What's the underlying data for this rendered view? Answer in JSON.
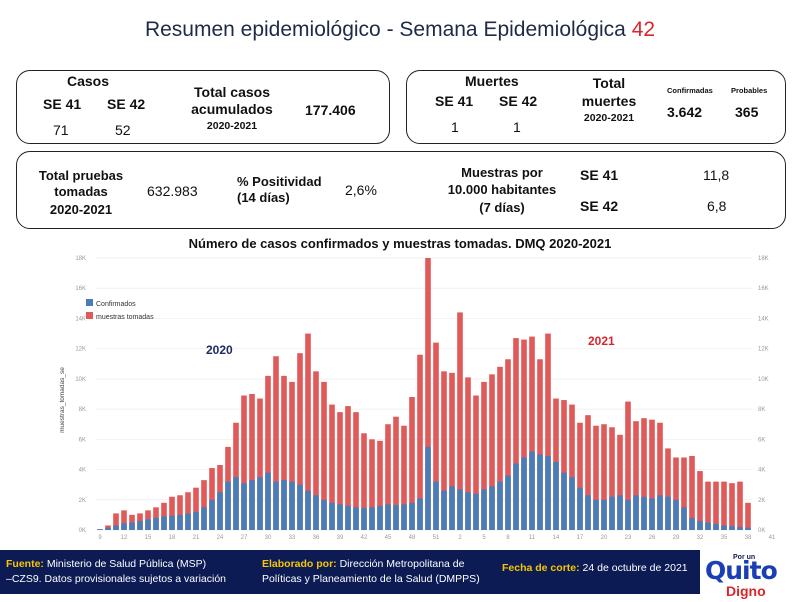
{
  "header": {
    "title": "Resumen epidemiológico - Semana Epidemiológica ",
    "week": "42"
  },
  "casos": {
    "heading": "Casos",
    "se41_label": "SE 41",
    "se42_label": "SE 42",
    "se41_value": "71",
    "se42_value": "52",
    "total_label_1": "Total casos",
    "total_label_2": "acumulados",
    "total_period": "2020-2021",
    "total_value": "177.406"
  },
  "muertes": {
    "heading": "Muertes",
    "se41_label": "SE 41",
    "se42_label": "SE 42",
    "se41_value": "1",
    "se42_value": "1",
    "total_label_1": "Total",
    "total_label_2": "muertes",
    "total_period": "2020-2021",
    "confirmadas_label": "Confirmadas",
    "probables_label": "Probables",
    "confirmadas_value": "3.642",
    "probables_value": "365"
  },
  "pruebas": {
    "total_label_1": "Total pruebas",
    "total_label_2": "tomadas",
    "total_period": "2020-2021",
    "total_value": "632.983",
    "positividad_label_1": "% Positividad",
    "positividad_label_2": "(14 días)",
    "positividad_value": "2,6%",
    "muestras_label_1": "Muestras por",
    "muestras_label_2": "10.000 habitantes",
    "muestras_label_3": "(7 días)",
    "se41_label": "SE 41",
    "se42_label": "SE 42",
    "se41_value": "11,8",
    "se42_value": "6,8"
  },
  "chart_data": {
    "type": "bar",
    "title": "Número de casos confirmados y muestras tomadas. DMQ 2020-2021",
    "ylabel": "muestras_tomadas_se",
    "ylim": [
      0,
      18000
    ],
    "yticks": [
      "0K",
      "2K",
      "4K",
      "6K",
      "8K",
      "10K",
      "12K",
      "14K",
      "16K",
      "18K"
    ],
    "xticks": [
      "9",
      "12",
      "15",
      "18",
      "21",
      "24",
      "27",
      "30",
      "33",
      "36",
      "39",
      "42",
      "45",
      "48",
      "51",
      "2",
      "5",
      "8",
      "11",
      "14",
      "17",
      "20",
      "23",
      "26",
      "29",
      "32",
      "35",
      "38",
      "41"
    ],
    "year_labels": [
      "2020",
      "2021"
    ],
    "colors": {
      "confirmados": "#4a7db8",
      "muestras": "#e05a5a"
    },
    "series": [
      {
        "name": "Confirmados",
        "values": [
          50,
          150,
          300,
          450,
          500,
          600,
          700,
          800,
          900,
          950,
          1000,
          1100,
          1200,
          1500,
          2000,
          2500,
          3200,
          3500,
          3100,
          3300,
          3500,
          3800,
          3200,
          3300,
          3200,
          3000,
          2600,
          2300,
          2000,
          1800,
          1700,
          1600,
          1500,
          1450,
          1500,
          1600,
          1700,
          1650,
          1700,
          1800,
          2100,
          5500,
          3200,
          2600,
          2900,
          2700,
          2500,
          2400,
          2700,
          2900,
          3200,
          3600,
          4400,
          4800,
          5200,
          5000,
          4900,
          4500,
          3800,
          3500,
          2800,
          2300,
          2000,
          2000,
          2200,
          2300,
          2000,
          2300,
          2200,
          2100,
          2300,
          2200,
          2000,
          1500,
          800,
          600,
          500,
          400,
          300,
          250,
          200,
          150
        ]
      },
      {
        "name": "muestras tomadas",
        "values": [
          50,
          300,
          1100,
          1300,
          1000,
          1100,
          1300,
          1500,
          1800,
          2200,
          2300,
          2500,
          2800,
          3300,
          4100,
          4300,
          5500,
          7100,
          8900,
          9000,
          8700,
          10200,
          11500,
          10200,
          9800,
          11700,
          13000,
          10500,
          9800,
          8300,
          7800,
          8200,
          7800,
          6400,
          6000,
          5900,
          7000,
          7500,
          6900,
          8800,
          11600,
          18000,
          12400,
          10500,
          10400,
          14400,
          10100,
          8900,
          9800,
          10300,
          10800,
          11300,
          12700,
          12600,
          12800,
          11300,
          13000,
          8700,
          8600,
          8300,
          7100,
          7600,
          6900,
          7000,
          6800,
          6300,
          8500,
          7200,
          7400,
          7300,
          7100,
          5400,
          4800,
          4800,
          4900,
          3900,
          3200,
          3200,
          3200,
          3100,
          3200,
          1800
        ]
      }
    ]
  },
  "footer": {
    "fuente_label": "Fuente:",
    "fuente_text": "Ministerio de Salud Pública (MSP)",
    "fuente_text_2": "–CZS9. Datos provisionales sujetos a variación",
    "elaborado_label": "Elaborado por:",
    "elaborado_text": "Dirección Metropolitana de",
    "elaborado_text_2": "Políticas y Planeamiento de la Salud (DMPPS)",
    "fecha_label": "Fecha de corte:",
    "fecha_text": "24 de octubre de 2021"
  },
  "logo": {
    "top": "Por un",
    "main": "Quito",
    "sub": "Digno"
  }
}
